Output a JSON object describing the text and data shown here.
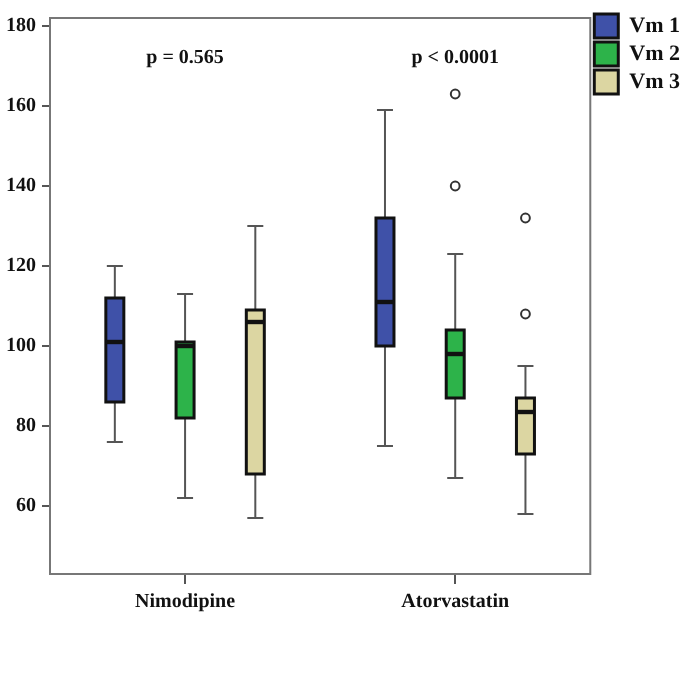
{
  "chart_data": {
    "type": "box",
    "categories": [
      "Nimodipine",
      "Atorvastatin"
    ],
    "series": [
      {
        "name": "Vm 1",
        "color": "#3f51a8",
        "boxes": [
          {
            "low": 76,
            "q1": 86,
            "median": 101,
            "q3": 112,
            "high": 120
          },
          {
            "low": 75,
            "q1": 100,
            "median": 111,
            "q3": 132,
            "high": 159
          }
        ]
      },
      {
        "name": "Vm 2",
        "color": "#2db34a",
        "boxes": [
          {
            "low": 62,
            "q1": 82,
            "median": 100,
            "q3": 101,
            "high": 113
          },
          {
            "low": 67,
            "q1": 87,
            "median": 98,
            "q3": 104,
            "high": 123,
            "outliers": [
              163,
              140
            ]
          }
        ]
      },
      {
        "name": "Vm 3",
        "color": "#dcd6a2",
        "boxes": [
          {
            "low": 57,
            "q1": 68,
            "median": 106,
            "q3": 109,
            "high": 130
          },
          {
            "low": 58,
            "q1": 73,
            "median": 83.5,
            "q3": 87,
            "high": 95,
            "outliers": [
              132,
              108
            ]
          }
        ]
      }
    ],
    "ylim": [
      43,
      182
    ],
    "yticks": [
      60,
      80,
      100,
      120,
      140,
      160,
      180
    ],
    "grid": false,
    "legend": "top right",
    "annotations": [
      "p = 0.565",
      "p < 0.0001"
    ]
  }
}
